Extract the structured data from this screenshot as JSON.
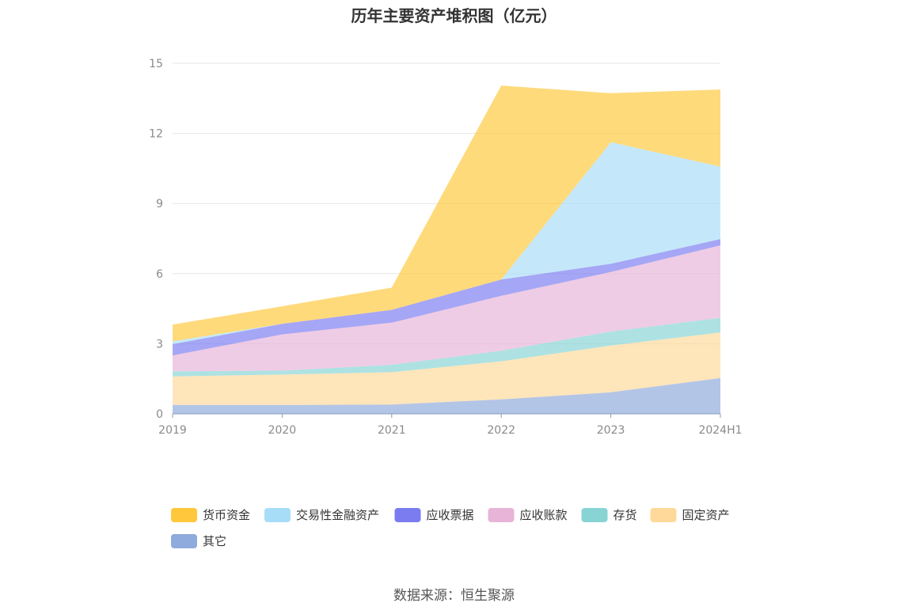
{
  "chart_data": {
    "type": "area",
    "stacked": true,
    "title": "历年主要资产堆积图（亿元）",
    "categories": [
      "2019",
      "2020",
      "2021",
      "2022",
      "2023",
      "2024H1"
    ],
    "ylim": [
      0,
      15
    ],
    "yticks": [
      "0",
      "3",
      "6",
      "9",
      "12",
      "15"
    ],
    "grid": true,
    "legend_position": "bottom",
    "series": [
      {
        "name": "其它",
        "color": "#8faadc",
        "values": [
          0.38,
          0.38,
          0.4,
          0.62,
          0.92,
          1.53
        ]
      },
      {
        "name": "固定资产",
        "color": "#ffd999",
        "values": [
          1.22,
          1.3,
          1.38,
          1.63,
          2.0,
          1.95
        ]
      },
      {
        "name": "存货",
        "color": "#88d4d4",
        "values": [
          0.22,
          0.17,
          0.32,
          0.45,
          0.6,
          0.63
        ]
      },
      {
        "name": "应收账款",
        "color": "#e8b4d8",
        "values": [
          0.68,
          1.55,
          1.8,
          2.35,
          2.55,
          3.1
        ]
      },
      {
        "name": "应收票据",
        "color": "#7b7cf0",
        "values": [
          0.48,
          0.45,
          0.55,
          0.7,
          0.35,
          0.27
        ]
      },
      {
        "name": "交易性金融资产",
        "color": "#a8ddf7",
        "values": [
          0.12,
          0.0,
          0.0,
          0.0,
          5.2,
          3.1
        ]
      },
      {
        "name": "货币资金",
        "color": "#ffc83c",
        "values": [
          0.72,
          0.75,
          0.95,
          8.3,
          2.1,
          3.3
        ]
      }
    ],
    "legend_order": [
      "货币资金",
      "交易性金融资产",
      "应收票据",
      "应收账款",
      "存货",
      "固定资产",
      "其它"
    ]
  },
  "source_note": "数据来源：恒生聚源"
}
